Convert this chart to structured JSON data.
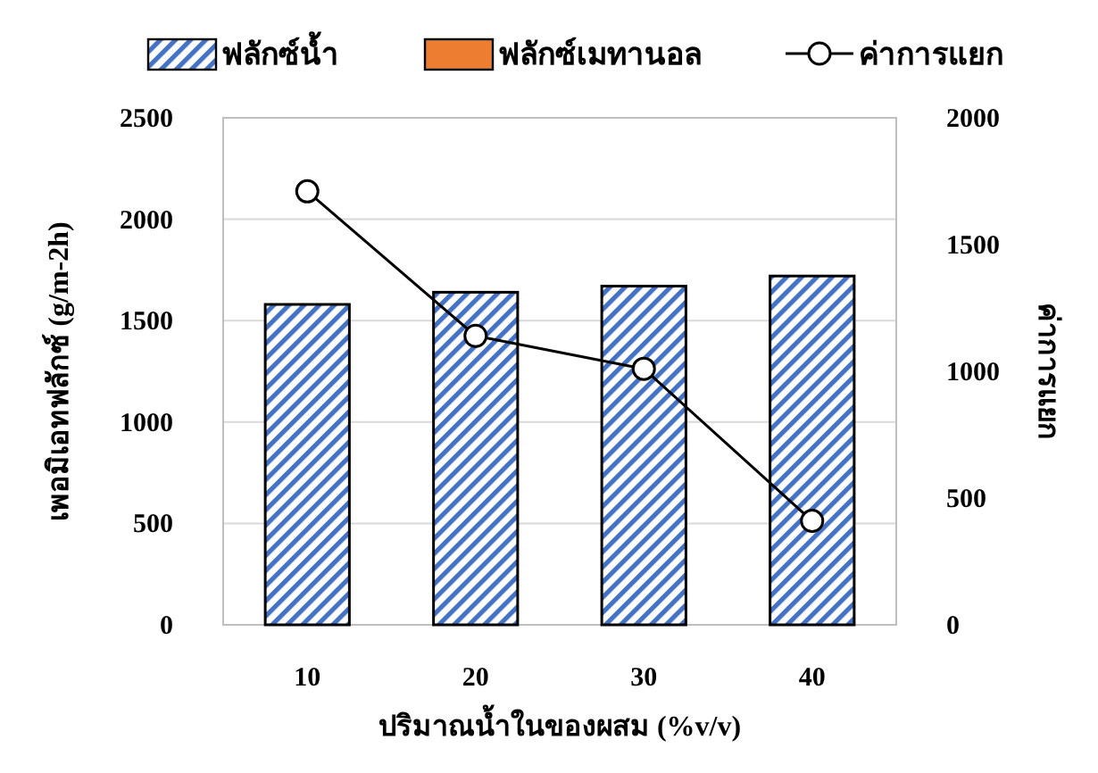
{
  "chart_data": {
    "type": "bar",
    "stacked": true,
    "categories": [
      "10",
      "20",
      "30",
      "40"
    ],
    "xlabel": "ปริมาณน้ำในของผสม (%v/v)",
    "ylabel": "เพอมิเอทฟลักซ์ (g/m-2h)",
    "y2label": "ค่าการแยก",
    "ylim": [
      0,
      2500
    ],
    "yticks": [
      0,
      500,
      1000,
      1500,
      2000,
      2500
    ],
    "y2lim": [
      0,
      2000
    ],
    "y2ticks": [
      0,
      500,
      1000,
      1500,
      2000
    ],
    "grid": "y",
    "legend": "top",
    "series": [
      {
        "name": "ฟลักซ์น้ำ",
        "color": "#4472c4",
        "values": [
          1580,
          1640,
          1670,
          1720
        ]
      },
      {
        "name": "ฟลักซ์เมทานอล",
        "color": "#ed7d31",
        "values": [
          0,
          0,
          0,
          0
        ]
      },
      {
        "name": "ค่าการแยก",
        "type": "line",
        "axis": "y2",
        "color": "#000000",
        "marker": "circle",
        "values": [
          1710,
          1140,
          1010,
          410
        ]
      }
    ]
  }
}
